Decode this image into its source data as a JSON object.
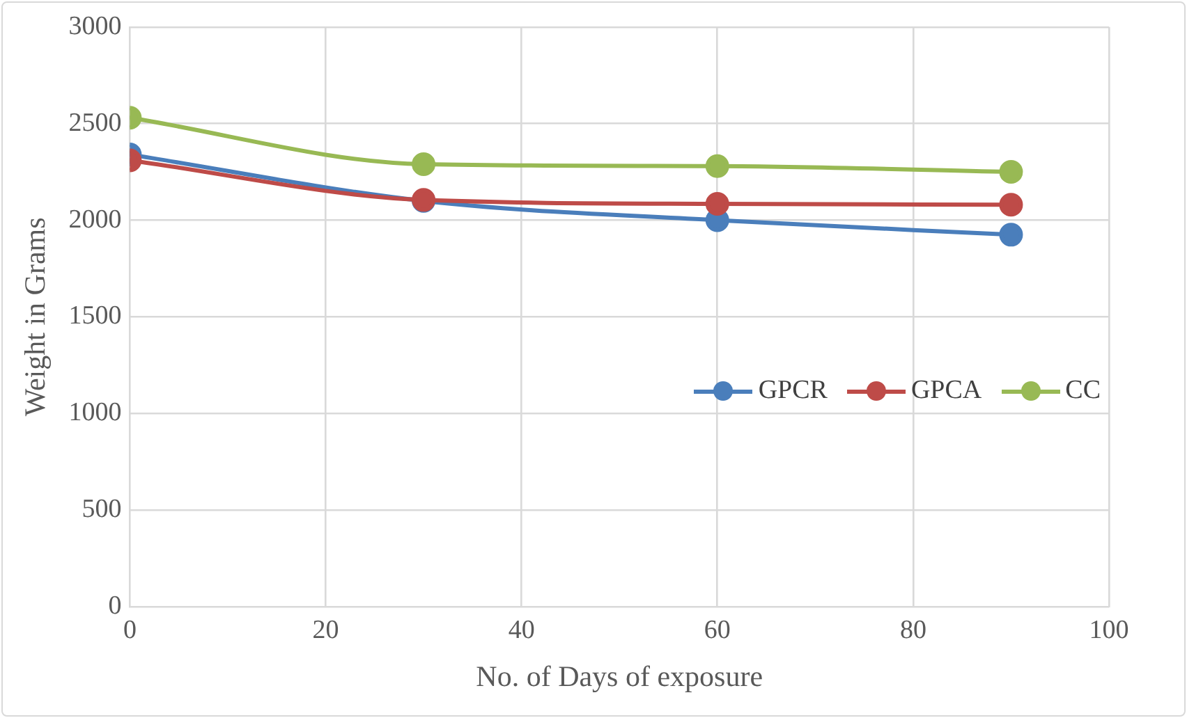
{
  "chart_data": {
    "type": "line",
    "xlabel": "No. of Days of exposure",
    "ylabel": "Weight in Grams",
    "x": [
      0,
      30,
      60,
      90
    ],
    "series": [
      {
        "name": "GPCR",
        "color": "#4a7ebb",
        "values": [
          2340,
          2100,
          2000,
          1925
        ]
      },
      {
        "name": "GPCA",
        "color": "#be4b48",
        "values": [
          2310,
          2105,
          2085,
          2080
        ]
      },
      {
        "name": "CC",
        "color": "#98b954",
        "values": [
          2530,
          2290,
          2280,
          2250
        ]
      }
    ],
    "xlim": [
      0,
      100
    ],
    "xticks": [
      0,
      20,
      40,
      60,
      80,
      100
    ],
    "ylim": [
      0,
      3000
    ],
    "yticks": [
      0,
      500,
      1000,
      1500,
      2000,
      2500,
      3000
    ],
    "grid": true,
    "legend": "right",
    "marker": "circle",
    "line_style": "solid"
  }
}
